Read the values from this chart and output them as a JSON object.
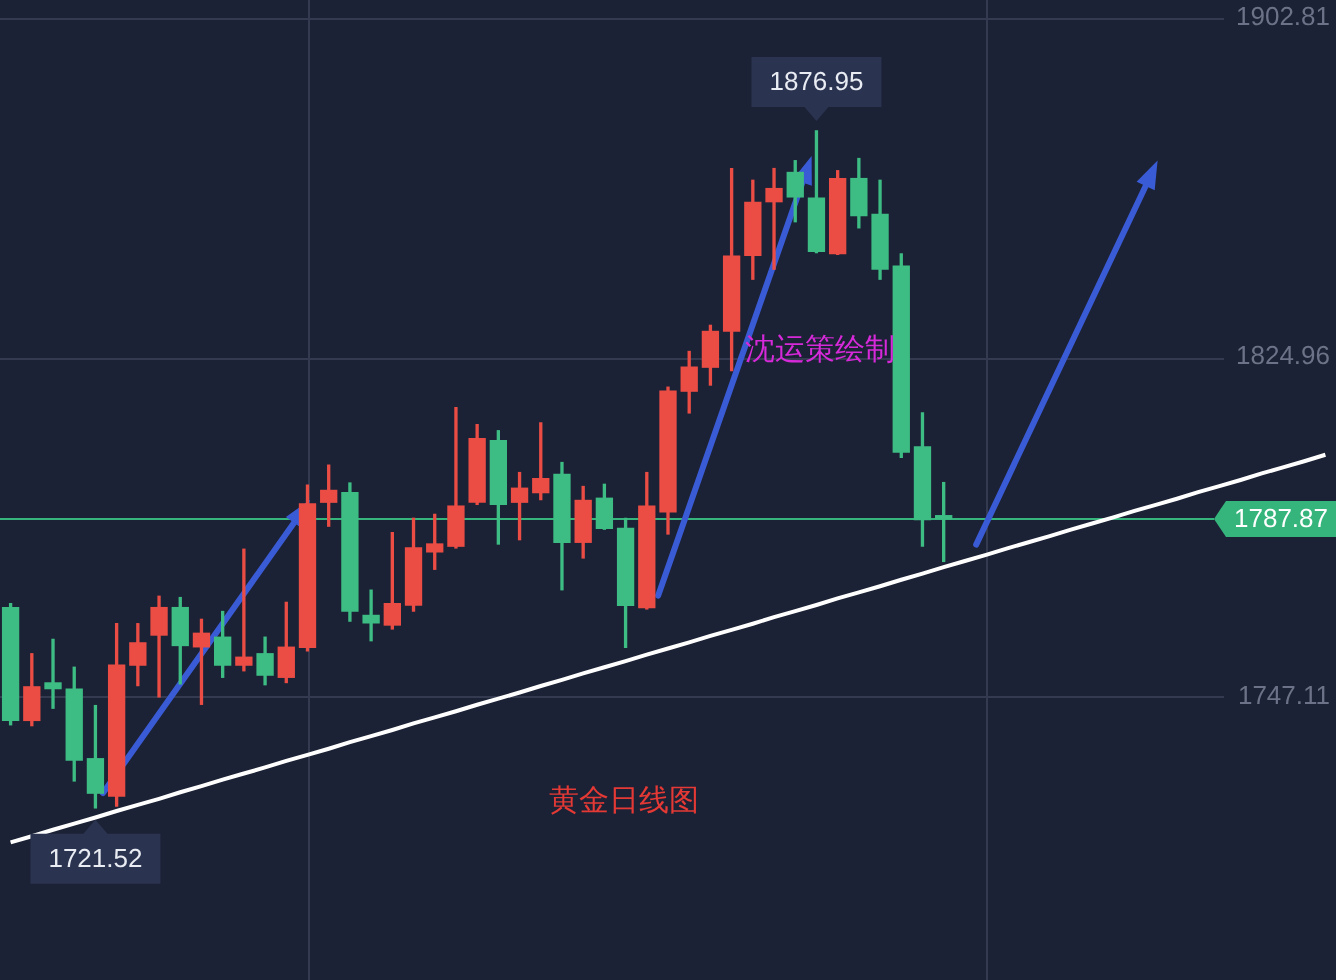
{
  "chart_data": {
    "type": "candlestick",
    "title": "黄金日线图",
    "annotations": [
      "沈运策绘制",
      {
        "text": "1876.95",
        "y": 1876.95
      },
      {
        "text": "1721.52",
        "y": 1721.52
      }
    ],
    "categories": [
      null,
      null,
      null,
      null,
      null,
      null,
      null,
      null,
      null,
      null,
      null,
      null,
      null,
      null,
      null,
      null,
      null,
      null,
      null,
      null,
      null,
      null,
      null,
      null,
      null,
      null,
      null,
      null,
      null,
      null,
      null,
      null,
      null,
      null,
      null,
      null,
      null,
      null,
      null,
      null,
      null,
      null,
      null,
      null,
      null,
      null,
      null,
      null,
      null,
      null,
      null,
      null,
      null,
      null,
      null,
      null,
      null,
      null,
      null,
      null,
      null,
      null,
      null
    ],
    "ohlc": [
      [
        1767.5,
        1768.4,
        1740.6,
        1741.6
      ],
      [
        1741.6,
        1756.9,
        1740.4,
        1749.3
      ],
      [
        1750.2,
        1760.2,
        1744.4,
        1748.9
      ],
      [
        1748.8,
        1753.8,
        1727.7,
        1732.5
      ],
      [
        1732.8,
        1745.0,
        1721.52,
        1724.9
      ],
      [
        1724.2,
        1763.8,
        1721.9,
        1754.3
      ],
      [
        1754.3,
        1763.8,
        1749.6,
        1759.4
      ],
      [
        1761.2,
        1770.1,
        1747.0,
        1767.5
      ],
      [
        1767.5,
        1769.8,
        1750.0,
        1758.8
      ],
      [
        1758.5,
        1764.8,
        1745.3,
        1761.6
      ],
      [
        1760.7,
        1766.6,
        1751.5,
        1754.3
      ],
      [
        1754.3,
        1780.9,
        1753.0,
        1756.1
      ],
      [
        1756.9,
        1760.7,
        1749.8,
        1752.0
      ],
      [
        1751.5,
        1768.7,
        1750.3,
        1758.4
      ],
      [
        1758.4,
        1795.6,
        1757.6,
        1791.3
      ],
      [
        1791.7,
        1800.2,
        1786.2,
        1794.4
      ],
      [
        1793.9,
        1796.1,
        1764.4,
        1766.7
      ],
      [
        1765.7,
        1771.5,
        1759.9,
        1764.0
      ],
      [
        1763.5,
        1784.7,
        1762.6,
        1768.4
      ],
      [
        1768.1,
        1788.0,
        1766.7,
        1781.2
      ],
      [
        1780.3,
        1788.9,
        1776.3,
        1782.1
      ],
      [
        1781.6,
        1813.4,
        1781.2,
        1790.8
      ],
      [
        1791.7,
        1809.5,
        1791.2,
        1806.3
      ],
      [
        1805.8,
        1808.1,
        1782.1,
        1791.2
      ],
      [
        1791.7,
        1798.5,
        1783.1,
        1794.9
      ],
      [
        1793.9,
        1809.9,
        1792.3,
        1797.1
      ],
      [
        1798.1,
        1800.8,
        1771.6,
        1782.5
      ],
      [
        1782.5,
        1795.3,
        1778.9,
        1792.1
      ],
      [
        1792.6,
        1795.8,
        1785.5,
        1785.7
      ],
      [
        1785.7,
        1788.0,
        1758.4,
        1768.0
      ],
      [
        1767.5,
        1798.5,
        1767.2,
        1790.8
      ],
      [
        1789.5,
        1818.1,
        1784.4,
        1817.2
      ],
      [
        1817.2,
        1826.3,
        1812.2,
        1822.7
      ],
      [
        1822.7,
        1832.3,
        1818.6,
        1830.9
      ],
      [
        1831.0,
        1868.3,
        1821.9,
        1848.2
      ],
      [
        1848.4,
        1865.6,
        1842.9,
        1860.5
      ],
      [
        1860.7,
        1868.3,
        1845.2,
        1863.7
      ],
      [
        1867.4,
        1870.1,
        1856.1,
        1861.8
      ],
      [
        1861.5,
        1876.95,
        1849.0,
        1849.3
      ],
      [
        1848.8,
        1867.8,
        1848.6,
        1866.0
      ],
      [
        1866.0,
        1870.6,
        1854.7,
        1857.5
      ],
      [
        1857.8,
        1865.6,
        1842.9,
        1845.2
      ],
      [
        1845.9,
        1848.7,
        1802.0,
        1803.2
      ],
      [
        1804.4,
        1812.2,
        1781.6,
        1787.7
      ],
      [
        1788.6,
        1796.2,
        1778.1,
        1787.87
      ],
      null,
      null,
      null,
      null,
      null,
      null,
      null,
      null,
      null,
      null,
      null,
      null,
      null,
      null,
      null,
      null,
      null,
      null
    ],
    "colors": [
      "#3dbd84",
      "#eb4d45",
      "#3dbd84",
      "#3dbd84",
      "#3dbd84",
      "#eb4d45",
      "#eb4d45",
      "#eb4d45",
      "#3dbd84",
      "#eb4d45",
      "#3dbd84",
      "#eb4d45",
      "#3dbd84",
      "#eb4d45",
      "#eb4d45",
      "#eb4d45",
      "#3dbd84",
      "#3dbd84",
      "#eb4d45",
      "#eb4d45",
      "#eb4d45",
      "#eb4d45",
      "#eb4d45",
      "#3dbd84",
      "#eb4d45",
      "#eb4d45",
      "#3dbd84",
      "#eb4d45",
      "#3dbd84",
      "#3dbd84",
      "#eb4d45",
      "#eb4d45",
      "#eb4d45",
      "#eb4d45",
      "#eb4d45",
      "#eb4d45",
      "#eb4d45",
      "#3dbd84",
      "#3dbd84",
      "#eb4d45",
      "#3dbd84",
      "#3dbd84",
      "#3dbd84",
      "#3dbd84",
      "#3dbd84",
      null,
      null,
      null,
      null,
      null,
      null,
      null,
      null,
      null,
      null,
      null,
      null,
      null,
      null,
      null,
      null,
      null,
      null
    ],
    "series": [
      {
        "type": "line",
        "color": "#ffffff",
        "values": [
          1713.6,
          1715.0,
          1716.5,
          1717.9,
          1719.3,
          1720.8,
          1722.2,
          1723.6,
          1725.1,
          1726.5,
          1728.0,
          1729.4,
          1730.8,
          1732.3,
          1733.7,
          1735.1,
          1736.6,
          1738.0,
          1739.4,
          1740.9,
          1742.3,
          1743.7,
          1745.2,
          1746.6,
          1748.0,
          1749.5,
          1750.9,
          1752.4,
          1753.8,
          1755.2,
          1756.7,
          1758.1,
          1759.5,
          1761.0,
          1762.4,
          1763.8,
          1765.3,
          1766.7,
          1768.1,
          1769.6,
          1771.0,
          1772.4,
          1773.9,
          1775.3,
          1776.8,
          1778.2,
          1779.6,
          1781.1,
          1782.5,
          1783.9,
          1785.4,
          1786.8,
          1788.2,
          1789.7,
          1791.1,
          1792.5,
          1794.0,
          1795.4,
          1796.8,
          1798.3,
          1799.7,
          1801.1,
          1802.6
        ]
      }
    ],
    "ylim": [
      1682,
      1907
    ],
    "yticks": [
      1747.11,
      1824.96,
      1902.81
    ],
    "ref_lines": [
      {
        "axis": "y",
        "value": 1787.87,
        "label": "1787.87",
        "color": "#35b57c"
      }
    ],
    "grid": true,
    "tick_labels": "y"
  }
}
